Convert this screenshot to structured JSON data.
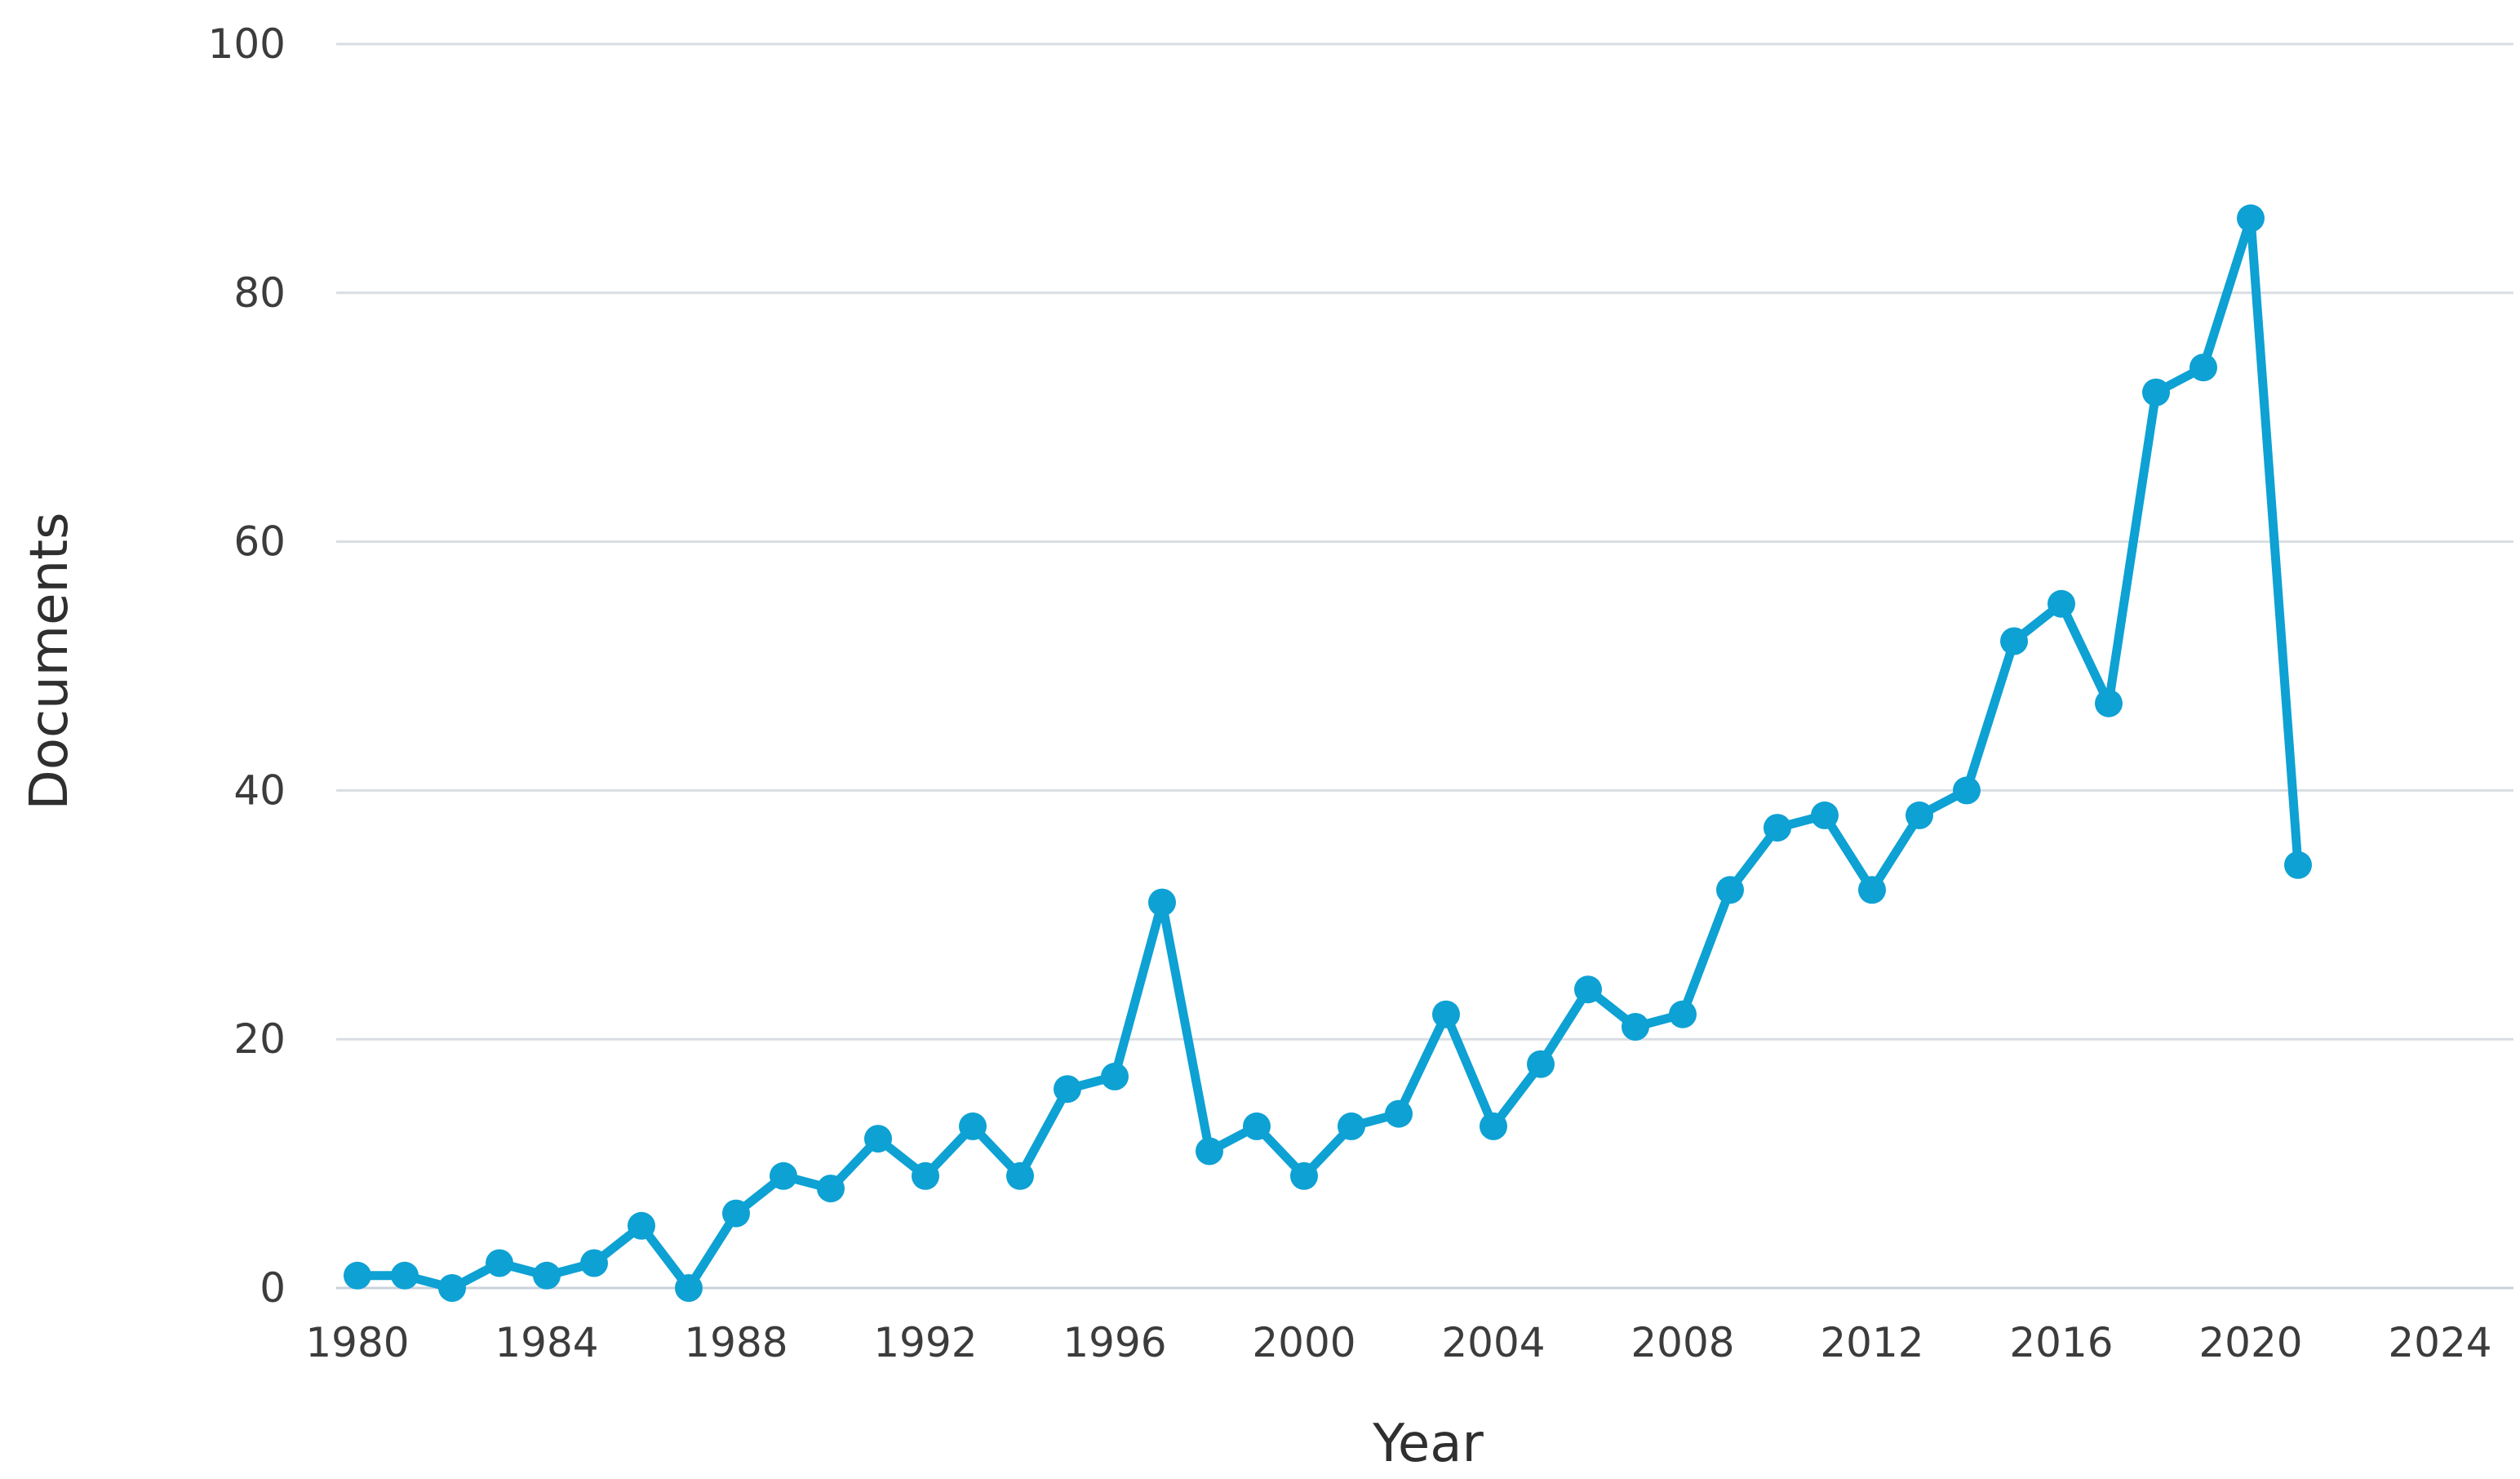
{
  "chart_data": {
    "type": "line",
    "title": "",
    "xlabel": "Year",
    "ylabel": "Documents",
    "xlim": [
      1980,
      2024
    ],
    "ylim": [
      0,
      100
    ],
    "x_ticks": [
      "1980",
      "1984",
      "1988",
      "1992",
      "1996",
      "2000",
      "2004",
      "2008",
      "2012",
      "2016",
      "2020",
      "2024"
    ],
    "y_ticks": [
      "0",
      "20",
      "40",
      "60",
      "80",
      "100"
    ],
    "grid": true,
    "legend": "none",
    "series": [
      {
        "color": "#0ea1d3",
        "x": [
          1980,
          1981,
          1982,
          1983,
          1984,
          1985,
          1986,
          1987,
          1988,
          1989,
          1990,
          1991,
          1992,
          1993,
          1994,
          1995,
          1996,
          1997,
          1998,
          1999,
          2000,
          2001,
          2002,
          2003,
          2004,
          2005,
          2006,
          2007,
          2008,
          2009,
          2010,
          2011,
          2012,
          2013,
          2014,
          2015,
          2016,
          2017,
          2018,
          2019,
          2020,
          2021
        ],
        "values": [
          1,
          1,
          0,
          2,
          1,
          2,
          5,
          0,
          6,
          9,
          8,
          12,
          9,
          13,
          9,
          16,
          17,
          31,
          11,
          13,
          9,
          13,
          14,
          22,
          13,
          18,
          24,
          21,
          22,
          32,
          37,
          38,
          32,
          38,
          40,
          52,
          55,
          47,
          72,
          74,
          86,
          34
        ]
      }
    ]
  }
}
